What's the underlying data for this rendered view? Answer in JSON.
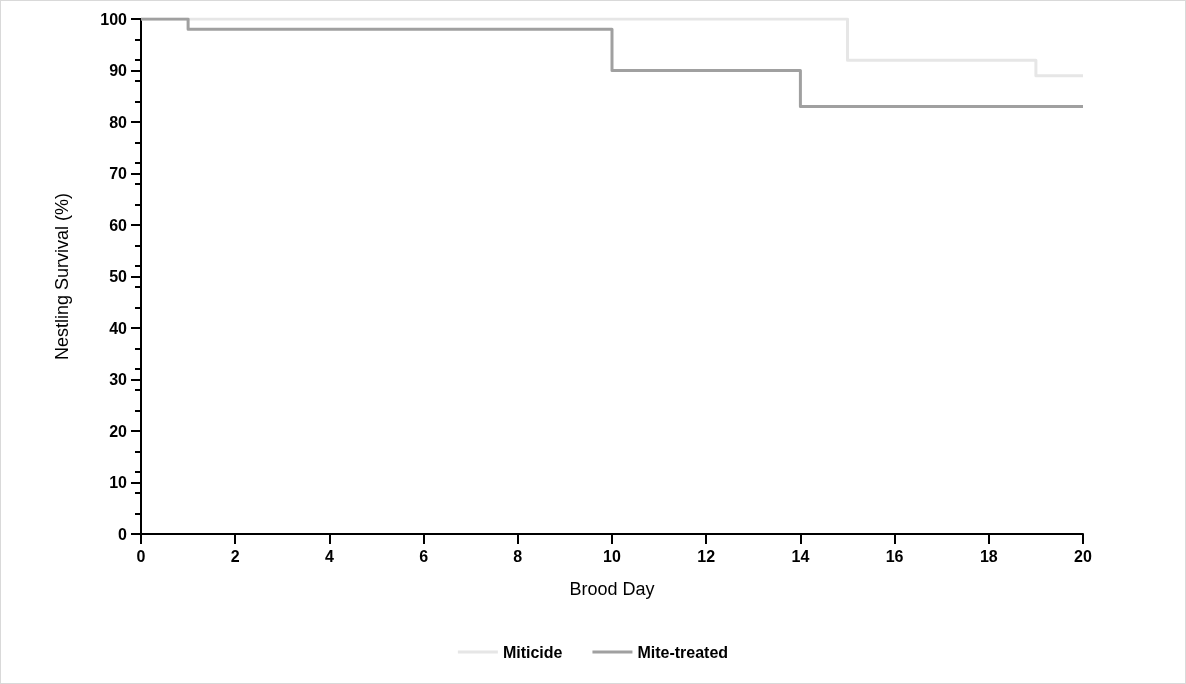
{
  "chart_data": {
    "type": "step",
    "xlabel": "Brood Day",
    "ylabel": "Nestling Survival (%)",
    "series": [
      {
        "name": "Miticide",
        "color": "#e6e6e6",
        "x": [
          0,
          15,
          19,
          20
        ],
        "values": [
          100,
          92,
          89,
          89
        ]
      },
      {
        "name": "Mite-treated",
        "color": "#a0a0a0",
        "x": [
          0,
          1,
          10,
          14,
          20
        ],
        "values": [
          100,
          98,
          90,
          83,
          83
        ]
      }
    ],
    "xlim": [
      0,
      20
    ],
    "xticks": [
      0,
      2,
      4,
      6,
      8,
      10,
      12,
      14,
      16,
      18,
      20
    ],
    "ylim": [
      0,
      100
    ],
    "yticks": [
      0,
      10,
      20,
      30,
      40,
      50,
      60,
      70,
      80,
      90,
      100
    ],
    "grid": false,
    "legend": "bottom",
    "marker": "none",
    "line_style": "solid"
  }
}
